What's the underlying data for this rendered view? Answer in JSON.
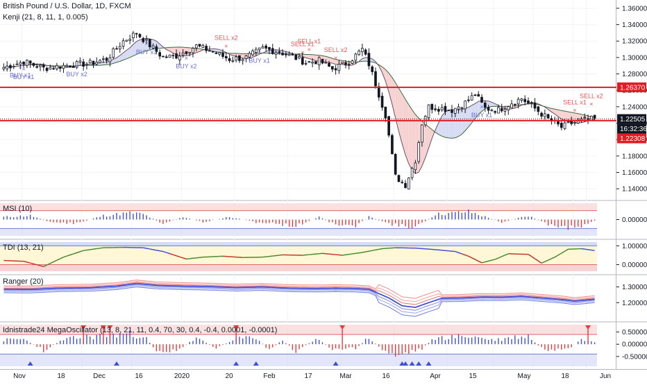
{
  "header": {
    "symbol_title": "British Pound / U.S. Dollar, 1D, FXCM",
    "indicator_title": "Kenji (21, 8, 11, 1, 0.005)"
  },
  "colors": {
    "up": "#131722",
    "down": "#131722",
    "resistance": "#e31b23",
    "buy_text": "#6a6fd6",
    "sell_text": "#e45656",
    "price_tag": "#131722",
    "level_tag": "#e31b23",
    "band_fill_up": "#d8dcf3",
    "band_fill_down": "#f6d2d2",
    "zone_red": "#f8d3d3",
    "zone_blue": "#d6dcf5"
  },
  "chart_data": [
    {
      "type": "candlestick",
      "title": "British Pound / U.S. Dollar, 1D, FXCM",
      "y_ticks": [
        "1.14000",
        "1.16000",
        "1.18000",
        "1.20000",
        "1.22000",
        "1.24000",
        "1.26000",
        "1.28000",
        "1.30000",
        "1.32000",
        "1.34000",
        "1.36000"
      ],
      "ylim": [
        1.13,
        1.365
      ],
      "x_ticks": [
        "Nov",
        "18",
        "Dec",
        "16",
        "2020",
        "20",
        "Feb",
        "17",
        "Mar",
        "16",
        "Apr",
        "15",
        "May",
        "18",
        "Jun"
      ],
      "levels": [
        {
          "value": 1.2637,
          "label": "1.26370"
        },
        {
          "value": 1.2231,
          "label": "1.22308"
        }
      ],
      "last_price": {
        "value": 1.22505,
        "label": "1.22505",
        "countdown": "16:32:36"
      },
      "anchors": [
        [
          0,
          1.288
        ],
        [
          6,
          1.295
        ],
        [
          12,
          1.287
        ],
        [
          20,
          1.291
        ],
        [
          26,
          1.293
        ],
        [
          31,
          1.298
        ],
        [
          36,
          1.32
        ],
        [
          40,
          1.33
        ],
        [
          44,
          1.315
        ],
        [
          48,
          1.3
        ],
        [
          52,
          1.302
        ],
        [
          58,
          1.314
        ],
        [
          63,
          1.307
        ],
        [
          68,
          1.298
        ],
        [
          73,
          1.3
        ],
        [
          78,
          1.311
        ],
        [
          83,
          1.307
        ],
        [
          87,
          1.301
        ],
        [
          91,
          1.294
        ],
        [
          95,
          1.296
        ],
        [
          99,
          1.286
        ],
        [
          104,
          1.295
        ],
        [
          108,
          1.31
        ],
        [
          110,
          1.292
        ],
        [
          112,
          1.268
        ],
        [
          115,
          1.23
        ],
        [
          118,
          1.155
        ],
        [
          121,
          1.145
        ],
        [
          124,
          1.175
        ],
        [
          126,
          1.22
        ],
        [
          128,
          1.24
        ],
        [
          132,
          1.238
        ],
        [
          135,
          1.236
        ],
        [
          139,
          1.245
        ],
        [
          142,
          1.255
        ],
        [
          145,
          1.238
        ],
        [
          149,
          1.236
        ],
        [
          153,
          1.245
        ],
        [
          156,
          1.25
        ],
        [
          160,
          1.238
        ],
        [
          164,
          1.225
        ],
        [
          168,
          1.215
        ],
        [
          171,
          1.22
        ],
        [
          175,
          1.224
        ],
        [
          178,
          1.225
        ]
      ],
      "signals": [
        {
          "i": 5,
          "label": "BUY x1",
          "kind": "buy"
        },
        {
          "i": 6,
          "label": "BUY x1",
          "kind": "buy"
        },
        {
          "i": 22,
          "label": "BUY x2",
          "kind": "buy"
        },
        {
          "i": 43,
          "label": "BUY x1",
          "kind": "buy"
        },
        {
          "i": 55,
          "label": "BUY x2",
          "kind": "buy"
        },
        {
          "i": 67,
          "label": "SELL x2",
          "kind": "sell"
        },
        {
          "i": 77,
          "label": "BUY x1",
          "kind": "buy"
        },
        {
          "i": 90,
          "label": "SELL x1",
          "kind": "sell"
        },
        {
          "i": 92,
          "label": "SELL x1",
          "kind": "sell"
        },
        {
          "i": 100,
          "label": "SELL x2",
          "kind": "sell"
        },
        {
          "i": 144,
          "label": "BUY x1",
          "kind": "buy"
        },
        {
          "i": 172,
          "label": "SELL x1",
          "kind": "sell"
        },
        {
          "i": 177,
          "label": "SELL x2",
          "kind": "sell"
        }
      ]
    },
    {
      "type": "bar",
      "title": "MSI (10)",
      "y_ticks": [
        "0.00000"
      ],
      "ylim": [
        -1.1,
        1.1
      ],
      "bands": [
        0.6,
        -0.6
      ],
      "anchors": [
        [
          0,
          0.2
        ],
        [
          8,
          0.3
        ],
        [
          14,
          -0.2
        ],
        [
          22,
          -0.3
        ],
        [
          30,
          0.3
        ],
        [
          38,
          0.5
        ],
        [
          42,
          0.4
        ],
        [
          48,
          -0.3
        ],
        [
          54,
          0.2
        ],
        [
          60,
          -0.2
        ],
        [
          68,
          0.2
        ],
        [
          76,
          -0.2
        ],
        [
          82,
          -0.3
        ],
        [
          88,
          -0.5
        ],
        [
          95,
          0.2
        ],
        [
          100,
          -0.4
        ],
        [
          106,
          -0.5
        ],
        [
          110,
          0.2
        ],
        [
          116,
          -0.3
        ],
        [
          122,
          -0.6
        ],
        [
          126,
          -0.3
        ],
        [
          130,
          0.4
        ],
        [
          136,
          0.5
        ],
        [
          140,
          0.6
        ],
        [
          144,
          0.3
        ],
        [
          150,
          -0.2
        ],
        [
          158,
          0.3
        ],
        [
          164,
          -0.4
        ],
        [
          170,
          -0.6
        ],
        [
          176,
          -0.4
        ],
        [
          178,
          -0.1
        ]
      ]
    },
    {
      "type": "line",
      "title": "TDI (13, 21)",
      "y_ticks": [
        "1.00000",
        "0.00000"
      ],
      "ylim": [
        -0.35,
        1.2
      ],
      "bands": [
        1.0,
        0.0
      ],
      "anchors": [
        [
          0,
          0.22
        ],
        [
          6,
          0.18
        ],
        [
          12,
          -0.1
        ],
        [
          18,
          0.4
        ],
        [
          24,
          0.75
        ],
        [
          30,
          0.9
        ],
        [
          36,
          0.92
        ],
        [
          42,
          0.9
        ],
        [
          48,
          0.7
        ],
        [
          55,
          0.3
        ],
        [
          60,
          0.4
        ],
        [
          66,
          0.45
        ],
        [
          72,
          0.38
        ],
        [
          78,
          0.4
        ],
        [
          84,
          0.52
        ],
        [
          90,
          0.5
        ],
        [
          96,
          0.6
        ],
        [
          102,
          0.5
        ],
        [
          108,
          0.65
        ],
        [
          114,
          0.85
        ],
        [
          118,
          0.9
        ],
        [
          124,
          0.88
        ],
        [
          130,
          0.8
        ],
        [
          136,
          0.7
        ],
        [
          140,
          0.45
        ],
        [
          144,
          0.1
        ],
        [
          148,
          0.28
        ],
        [
          152,
          0.58
        ],
        [
          158,
          0.55
        ],
        [
          162,
          0.08
        ],
        [
          166,
          0.4
        ],
        [
          170,
          0.82
        ],
        [
          174,
          0.85
        ],
        [
          178,
          0.75
        ]
      ]
    },
    {
      "type": "line",
      "title": "Ranger (20)",
      "y_ticks": [
        "1.30000",
        "1.20000"
      ],
      "ylim": [
        1.1,
        1.36
      ],
      "anchors": [
        [
          0,
          1.285
        ],
        [
          8,
          1.284
        ],
        [
          16,
          1.292
        ],
        [
          26,
          1.295
        ],
        [
          34,
          1.305
        ],
        [
          40,
          1.322
        ],
        [
          46,
          1.31
        ],
        [
          54,
          1.305
        ],
        [
          62,
          1.302
        ],
        [
          70,
          1.296
        ],
        [
          78,
          1.3
        ],
        [
          86,
          1.292
        ],
        [
          94,
          1.29
        ],
        [
          100,
          1.292
        ],
        [
          106,
          1.29
        ],
        [
          110,
          1.285
        ],
        [
          116,
          1.23
        ],
        [
          120,
          1.18
        ],
        [
          124,
          1.17
        ],
        [
          128,
          1.2
        ],
        [
          132,
          1.228
        ],
        [
          138,
          1.23
        ],
        [
          144,
          1.236
        ],
        [
          150,
          1.235
        ],
        [
          156,
          1.24
        ],
        [
          162,
          1.23
        ],
        [
          168,
          1.22
        ],
        [
          172,
          1.21
        ],
        [
          178,
          1.222
        ]
      ]
    },
    {
      "type": "bar",
      "title": "Idnistrade24 MegaOscillator (13, 8, 21, 11, 0.4, 70, 30, 0.4, -0.4, 0.0001, -0.0001)",
      "y_ticks": [
        "0.50000",
        "0.00000",
        "-0.50000"
      ],
      "ylim": [
        -0.9,
        0.8
      ],
      "bands": [
        0.4,
        -0.4
      ],
      "anchors": [
        [
          0,
          0.2
        ],
        [
          6,
          0.25
        ],
        [
          12,
          -0.3
        ],
        [
          18,
          0.22
        ],
        [
          24,
          0.35
        ],
        [
          30,
          0.4
        ],
        [
          36,
          0.5
        ],
        [
          42,
          0.45
        ],
        [
          46,
          -0.3
        ],
        [
          52,
          -0.35
        ],
        [
          58,
          0.3
        ],
        [
          64,
          -0.2
        ],
        [
          70,
          0.25
        ],
        [
          76,
          0.35
        ],
        [
          80,
          -0.3
        ],
        [
          84,
          0.2
        ],
        [
          88,
          -0.35
        ],
        [
          94,
          0.25
        ],
        [
          100,
          -0.3
        ],
        [
          106,
          -0.2
        ],
        [
          110,
          0.35
        ],
        [
          114,
          -0.3
        ],
        [
          118,
          -0.5
        ],
        [
          122,
          -0.4
        ],
        [
          126,
          -0.2
        ],
        [
          130,
          0.3
        ],
        [
          136,
          0.35
        ],
        [
          140,
          0.4
        ],
        [
          144,
          0.3
        ],
        [
          148,
          0.2
        ],
        [
          154,
          0.35
        ],
        [
          158,
          0.4
        ],
        [
          162,
          -0.2
        ],
        [
          166,
          -0.35
        ],
        [
          170,
          -0.3
        ],
        [
          174,
          0.3
        ],
        [
          178,
          0.15
        ]
      ],
      "markers_down": [
        24,
        30,
        32,
        70,
        102,
        176
      ],
      "markers_up": [
        8,
        34,
        70,
        76,
        100,
        120,
        121,
        123,
        125,
        128
      ]
    }
  ]
}
